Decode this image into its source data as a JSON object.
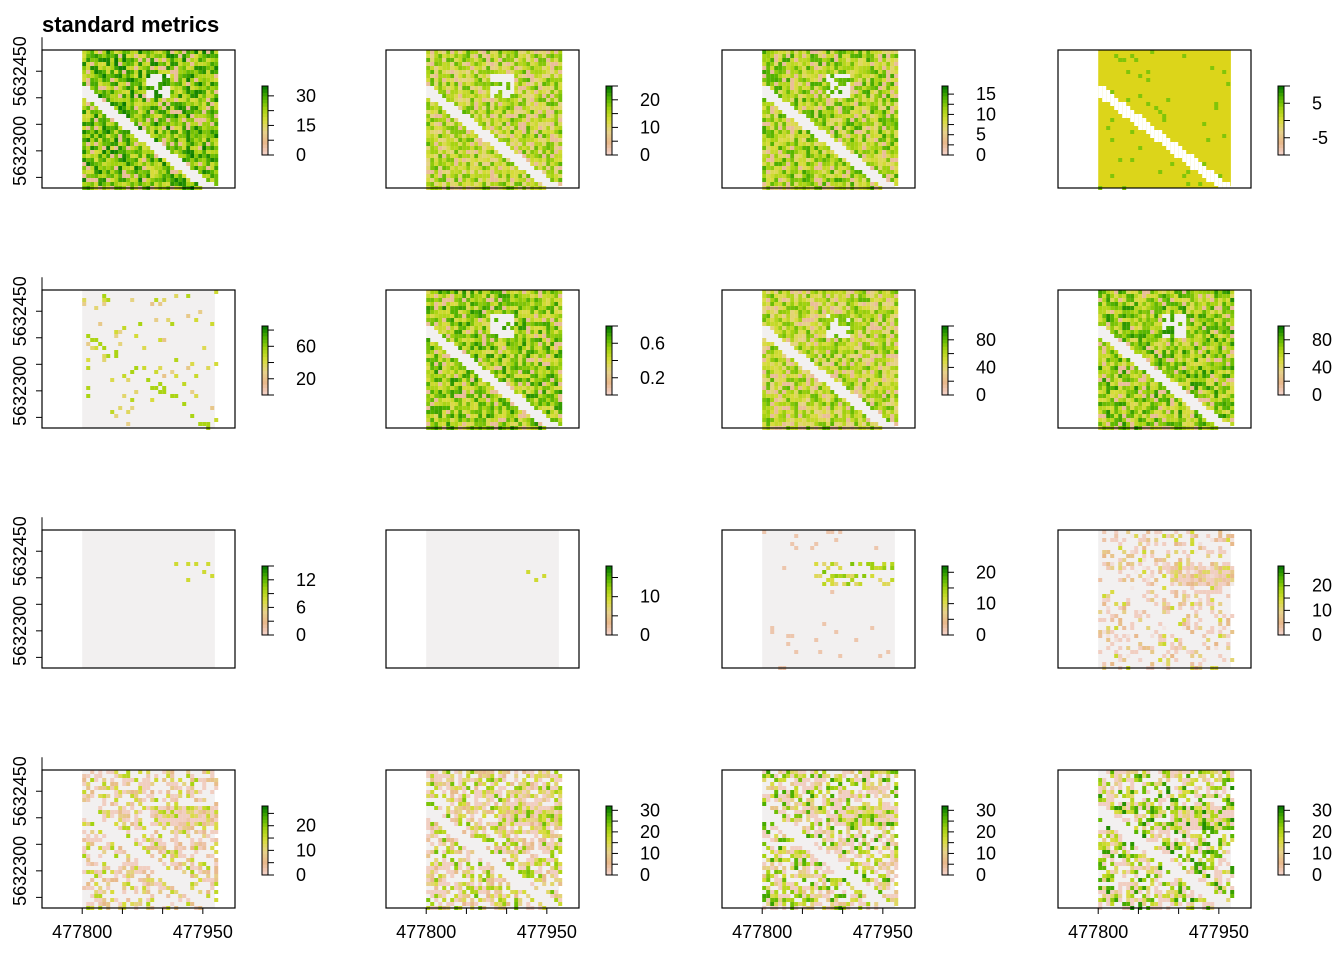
{
  "title": "standard metrics",
  "colors": {
    "ramp": [
      "#f2f2f2",
      "#f1cfc4",
      "#e8b88a",
      "#e7d28a",
      "#d8dc3a",
      "#a6d310",
      "#54b400",
      "#0b7d00"
    ],
    "na": "#ffffff",
    "road": "#f3f0ee",
    "frame": "#000000"
  },
  "chart_data": {
    "type": "heatmap",
    "xlim": [
      477750,
      477990
    ],
    "ylim": [
      5632230,
      5632490
    ],
    "data_extent": {
      "x": [
        477800,
        477965
      ],
      "y": [
        5632230,
        5632490
      ]
    },
    "x_ticks": [
      477800,
      477950
    ],
    "y_ticks": [
      5632300,
      5632450
    ],
    "x_tick_labels": [
      "477800",
      "477950"
    ],
    "y_tick_labels": [
      "5632300",
      "5632450"
    ],
    "panels": [
      {
        "legend_ticks": [
          0,
          15,
          30
        ],
        "legend_range": [
          0,
          35
        ],
        "pattern": "canopy_high",
        "mean_level": 0.75
      },
      {
        "legend_ticks": [
          0,
          10,
          20
        ],
        "legend_range": [
          0,
          25
        ],
        "pattern": "canopy_mid",
        "mean_level": 0.6
      },
      {
        "legend_ticks": [
          0,
          5,
          10,
          15
        ],
        "legend_range": [
          0,
          17
        ],
        "pattern": "canopy_mid",
        "mean_level": 0.65
      },
      {
        "legend_ticks": [
          -5,
          5
        ],
        "legend_range": [
          -10,
          10
        ],
        "pattern": "flat_yellow",
        "mean_level": 0.5
      },
      {
        "legend_ticks": [
          20,
          60
        ],
        "legend_range": [
          0,
          85
        ],
        "pattern": "mostly_low",
        "mean_level": 0.1
      },
      {
        "legend_ticks": [
          0.2,
          0.6
        ],
        "legend_range": [
          0,
          0.8
        ],
        "pattern": "canopy_mid",
        "mean_level": 0.7
      },
      {
        "legend_ticks": [
          0,
          40,
          80
        ],
        "legend_range": [
          0,
          100
        ],
        "pattern": "canopy_mid",
        "mean_level": 0.6
      },
      {
        "legend_ticks": [
          0,
          40,
          80
        ],
        "legend_range": [
          0,
          100
        ],
        "pattern": "canopy_high",
        "mean_level": 0.7
      },
      {
        "legend_ticks": [
          0,
          6,
          12
        ],
        "legend_range": [
          0,
          15
        ],
        "pattern": "sparse_strip",
        "mean_level": 0.02
      },
      {
        "legend_ticks": [
          0,
          10
        ],
        "legend_range": [
          0,
          18
        ],
        "pattern": "sparse_strip",
        "mean_level": 0.05
      },
      {
        "legend_ticks": [
          0,
          10,
          20
        ],
        "legend_range": [
          0,
          22
        ],
        "pattern": "strip",
        "mean_level": 0.08
      },
      {
        "legend_ticks": [
          0,
          10,
          20
        ],
        "legend_range": [
          0,
          28
        ],
        "pattern": "patchy",
        "mean_level": 0.2
      },
      {
        "legend_ticks": [
          0,
          10,
          20
        ],
        "legend_range": [
          0,
          28
        ],
        "pattern": "patchy_more",
        "mean_level": 0.3
      },
      {
        "legend_ticks": [
          0,
          10,
          20,
          30
        ],
        "legend_range": [
          0,
          32
        ],
        "pattern": "patchy_dense",
        "mean_level": 0.4
      },
      {
        "legend_ticks": [
          0,
          10,
          20,
          30
        ],
        "legend_range": [
          0,
          32
        ],
        "pattern": "patchy_dense",
        "mean_level": 0.5
      },
      {
        "legend_ticks": [
          0,
          10,
          20,
          30
        ],
        "legend_range": [
          0,
          32
        ],
        "pattern": "patchy_dense",
        "mean_level": 0.55
      }
    ]
  }
}
